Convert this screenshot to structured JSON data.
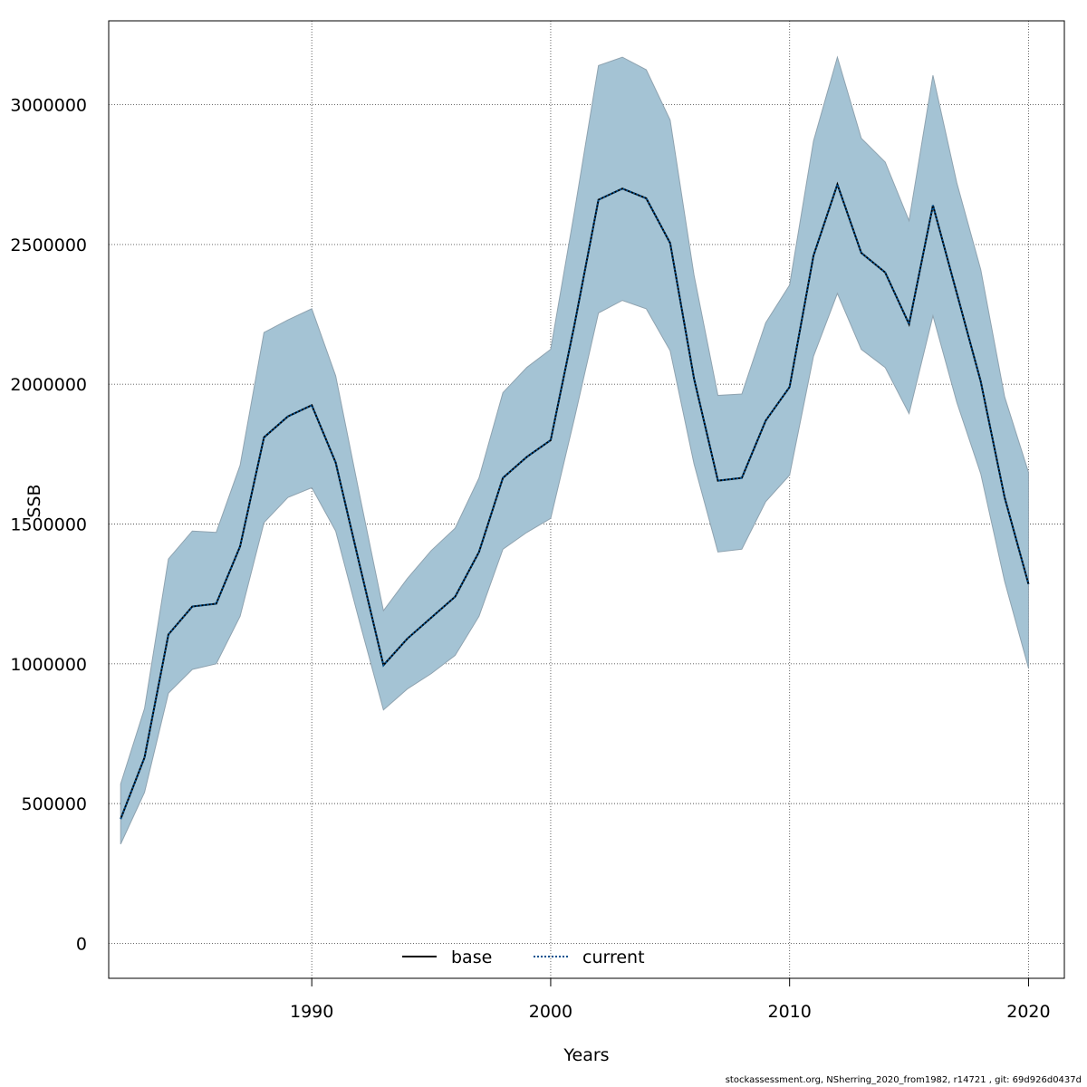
{
  "chart_data": {
    "type": "area",
    "title": "",
    "xlabel": "Years",
    "ylabel": "SSB",
    "xlim": [
      1981.5,
      2021.5
    ],
    "ylim": [
      -125000,
      3300000
    ],
    "x_ticks": [
      1990,
      2000,
      2010,
      2020
    ],
    "x_tick_labels": [
      "1990",
      "2000",
      "2010",
      "2020"
    ],
    "y_ticks": [
      0,
      500000,
      1000000,
      1500000,
      2000000,
      2500000,
      3000000
    ],
    "y_tick_labels": [
      "0",
      "500000",
      "1000000",
      "1500000",
      "2000000",
      "2500000",
      "3000000"
    ],
    "grid": true,
    "legend_placement": "bottom-center",
    "x": [
      1982,
      1983,
      1984,
      1985,
      1986,
      1987,
      1988,
      1989,
      1990,
      1991,
      1992,
      1993,
      1994,
      1995,
      1996,
      1997,
      1998,
      1999,
      2000,
      2001,
      2002,
      2003,
      2004,
      2005,
      2006,
      2007,
      2008,
      2009,
      2010,
      2011,
      2012,
      2013,
      2014,
      2015,
      2016,
      2017,
      2018,
      2019,
      2020
    ],
    "series": [
      {
        "name": "base",
        "line_style": "solid",
        "color": "#000000",
        "values": [
          445000,
          665000,
          1105000,
          1205000,
          1215000,
          1420000,
          1810000,
          1885000,
          1925000,
          1720000,
          1355000,
          995000,
          1090000,
          1165000,
          1240000,
          1400000,
          1665000,
          1740000,
          1800000,
          2215000,
          2660000,
          2700000,
          2665000,
          2505000,
          2020000,
          1655000,
          1665000,
          1870000,
          1990000,
          2460000,
          2715000,
          2470000,
          2400000,
          2215000,
          2640000,
          2325000,
          2010000,
          1595000,
          1285000
        ]
      },
      {
        "name": "current",
        "line_style": "dotted",
        "color": "#00508f",
        "values": [
          445000,
          665000,
          1105000,
          1205000,
          1215000,
          1420000,
          1810000,
          1885000,
          1925000,
          1720000,
          1355000,
          995000,
          1090000,
          1165000,
          1240000,
          1400000,
          1665000,
          1740000,
          1800000,
          2215000,
          2660000,
          2700000,
          2665000,
          2505000,
          2020000,
          1655000,
          1665000,
          1870000,
          1990000,
          2460000,
          2715000,
          2470000,
          2400000,
          2215000,
          2640000,
          2325000,
          2010000,
          1595000,
          1285000
        ]
      }
    ],
    "confidence_band": {
      "color": "#a4c3d4",
      "lower": [
        355000,
        540000,
        895000,
        980000,
        1000000,
        1170000,
        1505000,
        1595000,
        1630000,
        1475000,
        1150000,
        835000,
        910000,
        965000,
        1030000,
        1170000,
        1410000,
        1470000,
        1520000,
        1880000,
        2255000,
        2300000,
        2270000,
        2120000,
        1715000,
        1400000,
        1410000,
        1580000,
        1675000,
        2100000,
        2325000,
        2125000,
        2060000,
        1895000,
        2245000,
        1935000,
        1680000,
        1295000,
        985000
      ],
      "upper": [
        570000,
        840000,
        1375000,
        1475000,
        1470000,
        1710000,
        2185000,
        2230000,
        2270000,
        2030000,
        1605000,
        1190000,
        1305000,
        1405000,
        1485000,
        1665000,
        1970000,
        2060000,
        2125000,
        2620000,
        3140000,
        3170000,
        3125000,
        2945000,
        2390000,
        1960000,
        1965000,
        2220000,
        2355000,
        2870000,
        3170000,
        2880000,
        2795000,
        2585000,
        3105000,
        2720000,
        2410000,
        1955000,
        1685000
      ]
    }
  },
  "footer": "stockassessment.org, NSherring_2020_from1982, r14721 , git: 69d926d0437d"
}
